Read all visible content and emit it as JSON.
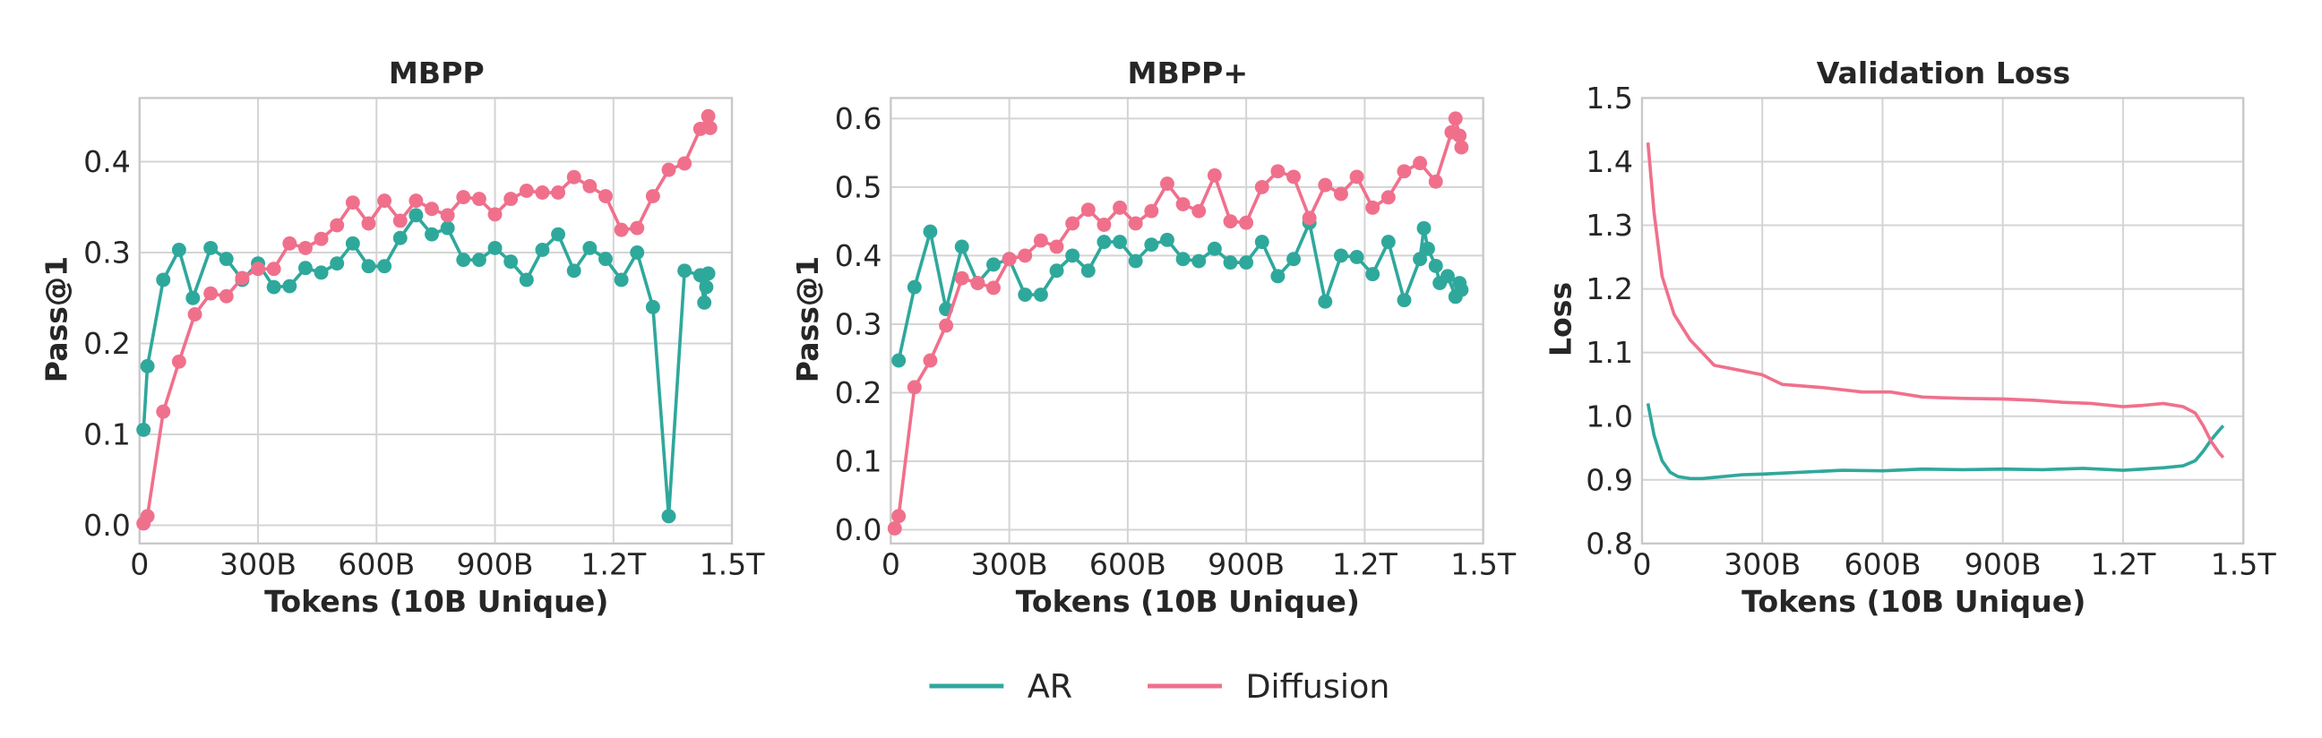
{
  "colors": {
    "AR": "#2fa89c",
    "Diffusion": "#f0708c"
  },
  "legend": {
    "placement": "bottom-center",
    "entries": [
      "AR",
      "Diffusion"
    ]
  },
  "chart_data": [
    {
      "type": "line",
      "title": "MBPP",
      "xlabel": "Tokens (10B Unique)",
      "ylabel": "Pass@1",
      "xlim": [
        0,
        1.5
      ],
      "ylim": [
        -0.02,
        0.47
      ],
      "x_unit": "trillion tokens",
      "xticks": [
        0,
        0.3,
        0.6,
        0.9,
        1.2,
        1.5
      ],
      "xtick_labels": [
        "0",
        "300B",
        "600B",
        "900B",
        "1.2T",
        "1.5T"
      ],
      "yticks": [
        0,
        0.1,
        0.2,
        0.3,
        0.4
      ],
      "ytick_labels": [
        "0.0",
        "0.1",
        "0.2",
        "0.3",
        "0.4"
      ],
      "grid": true,
      "markers": true,
      "series": [
        {
          "name": "AR",
          "points": [
            [
              0.01,
              0.105
            ],
            [
              0.02,
              0.175
            ],
            [
              0.06,
              0.27
            ],
            [
              0.1,
              0.303
            ],
            [
              0.135,
              0.25
            ],
            [
              0.18,
              0.305
            ],
            [
              0.22,
              0.293
            ],
            [
              0.26,
              0.27
            ],
            [
              0.3,
              0.288
            ],
            [
              0.34,
              0.262
            ],
            [
              0.38,
              0.263
            ],
            [
              0.42,
              0.283
            ],
            [
              0.46,
              0.278
            ],
            [
              0.5,
              0.288
            ],
            [
              0.54,
              0.31
            ],
            [
              0.58,
              0.285
            ],
            [
              0.62,
              0.285
            ],
            [
              0.66,
              0.316
            ],
            [
              0.7,
              0.341
            ],
            [
              0.74,
              0.32
            ],
            [
              0.78,
              0.327
            ],
            [
              0.82,
              0.292
            ],
            [
              0.86,
              0.292
            ],
            [
              0.9,
              0.305
            ],
            [
              0.94,
              0.29
            ],
            [
              0.98,
              0.27
            ],
            [
              1.02,
              0.303
            ],
            [
              1.06,
              0.32
            ],
            [
              1.1,
              0.28
            ],
            [
              1.14,
              0.305
            ],
            [
              1.18,
              0.293
            ],
            [
              1.22,
              0.27
            ],
            [
              1.26,
              0.3
            ],
            [
              1.3,
              0.24
            ],
            [
              1.34,
              0.01
            ],
            [
              1.38,
              0.28
            ],
            [
              1.42,
              0.275
            ],
            [
              1.43,
              0.245
            ],
            [
              1.435,
              0.262
            ],
            [
              1.44,
              0.277
            ]
          ]
        },
        {
          "name": "Diffusion",
          "points": [
            [
              0.01,
              0.002
            ],
            [
              0.02,
              0.01
            ],
            [
              0.06,
              0.125
            ],
            [
              0.1,
              0.18
            ],
            [
              0.14,
              0.232
            ],
            [
              0.18,
              0.255
            ],
            [
              0.22,
              0.252
            ],
            [
              0.26,
              0.272
            ],
            [
              0.3,
              0.282
            ],
            [
              0.34,
              0.282
            ],
            [
              0.38,
              0.31
            ],
            [
              0.42,
              0.305
            ],
            [
              0.46,
              0.315
            ],
            [
              0.5,
              0.33
            ],
            [
              0.54,
              0.355
            ],
            [
              0.58,
              0.332
            ],
            [
              0.62,
              0.357
            ],
            [
              0.66,
              0.335
            ],
            [
              0.7,
              0.357
            ],
            [
              0.74,
              0.348
            ],
            [
              0.78,
              0.341
            ],
            [
              0.82,
              0.361
            ],
            [
              0.86,
              0.359
            ],
            [
              0.9,
              0.342
            ],
            [
              0.94,
              0.359
            ],
            [
              0.98,
              0.368
            ],
            [
              1.02,
              0.366
            ],
            [
              1.06,
              0.366
            ],
            [
              1.1,
              0.383
            ],
            [
              1.14,
              0.373
            ],
            [
              1.18,
              0.362
            ],
            [
              1.22,
              0.325
            ],
            [
              1.26,
              0.327
            ],
            [
              1.3,
              0.362
            ],
            [
              1.34,
              0.391
            ],
            [
              1.38,
              0.398
            ],
            [
              1.42,
              0.436
            ],
            [
              1.44,
              0.45
            ],
            [
              1.445,
              0.437
            ]
          ]
        }
      ]
    },
    {
      "type": "line",
      "title": "MBPP+",
      "xlabel": "Tokens (10B Unique)",
      "ylabel": "Pass@1",
      "xlim": [
        0,
        1.5
      ],
      "ylim": [
        -0.02,
        0.63
      ],
      "x_unit": "trillion tokens",
      "xticks": [
        0,
        0.3,
        0.6,
        0.9,
        1.2,
        1.5
      ],
      "xtick_labels": [
        "0",
        "300B",
        "600B",
        "900B",
        "1.2T",
        "1.5T"
      ],
      "yticks": [
        0,
        0.1,
        0.2,
        0.3,
        0.4,
        0.5,
        0.6
      ],
      "ytick_labels": [
        "0.0",
        "0.1",
        "0.2",
        "0.3",
        "0.4",
        "0.5",
        "0.6"
      ],
      "grid": true,
      "markers": true,
      "series": [
        {
          "name": "AR",
          "points": [
            [
              0.02,
              0.247
            ],
            [
              0.06,
              0.354
            ],
            [
              0.1,
              0.435
            ],
            [
              0.14,
              0.322
            ],
            [
              0.18,
              0.413
            ],
            [
              0.22,
              0.36
            ],
            [
              0.26,
              0.387
            ],
            [
              0.3,
              0.395
            ],
            [
              0.34,
              0.343
            ],
            [
              0.38,
              0.343
            ],
            [
              0.42,
              0.378
            ],
            [
              0.46,
              0.4
            ],
            [
              0.5,
              0.378
            ],
            [
              0.54,
              0.42
            ],
            [
              0.58,
              0.42
            ],
            [
              0.62,
              0.392
            ],
            [
              0.66,
              0.416
            ],
            [
              0.7,
              0.423
            ],
            [
              0.74,
              0.395
            ],
            [
              0.78,
              0.392
            ],
            [
              0.82,
              0.41
            ],
            [
              0.86,
              0.39
            ],
            [
              0.9,
              0.39
            ],
            [
              0.94,
              0.42
            ],
            [
              0.98,
              0.37
            ],
            [
              1.02,
              0.395
            ],
            [
              1.06,
              0.448
            ],
            [
              1.1,
              0.333
            ],
            [
              1.14,
              0.4
            ],
            [
              1.18,
              0.398
            ],
            [
              1.22,
              0.373
            ],
            [
              1.26,
              0.42
            ],
            [
              1.3,
              0.335
            ],
            [
              1.34,
              0.395
            ],
            [
              1.35,
              0.44
            ],
            [
              1.36,
              0.41
            ],
            [
              1.38,
              0.385
            ],
            [
              1.39,
              0.36
            ],
            [
              1.41,
              0.37
            ],
            [
              1.43,
              0.34
            ],
            [
              1.44,
              0.36
            ],
            [
              1.445,
              0.35
            ]
          ]
        },
        {
          "name": "Diffusion",
          "points": [
            [
              0.01,
              0.002
            ],
            [
              0.02,
              0.02
            ],
            [
              0.06,
              0.208
            ],
            [
              0.1,
              0.247
            ],
            [
              0.14,
              0.298
            ],
            [
              0.18,
              0.367
            ],
            [
              0.22,
              0.36
            ],
            [
              0.26,
              0.353
            ],
            [
              0.3,
              0.395
            ],
            [
              0.34,
              0.4
            ],
            [
              0.38,
              0.422
            ],
            [
              0.42,
              0.413
            ],
            [
              0.46,
              0.447
            ],
            [
              0.5,
              0.467
            ],
            [
              0.54,
              0.445
            ],
            [
              0.58,
              0.47
            ],
            [
              0.62,
              0.447
            ],
            [
              0.66,
              0.465
            ],
            [
              0.7,
              0.505
            ],
            [
              0.74,
              0.475
            ],
            [
              0.78,
              0.465
            ],
            [
              0.82,
              0.517
            ],
            [
              0.86,
              0.45
            ],
            [
              0.9,
              0.448
            ],
            [
              0.94,
              0.5
            ],
            [
              0.98,
              0.523
            ],
            [
              1.02,
              0.515
            ],
            [
              1.06,
              0.455
            ],
            [
              1.1,
              0.503
            ],
            [
              1.14,
              0.49
            ],
            [
              1.18,
              0.515
            ],
            [
              1.22,
              0.47
            ],
            [
              1.26,
              0.485
            ],
            [
              1.3,
              0.523
            ],
            [
              1.34,
              0.535
            ],
            [
              1.38,
              0.508
            ],
            [
              1.42,
              0.58
            ],
            [
              1.43,
              0.6
            ],
            [
              1.44,
              0.575
            ],
            [
              1.445,
              0.558
            ]
          ]
        }
      ]
    },
    {
      "type": "line",
      "title": "Validation Loss",
      "xlabel": "Tokens (10B Unique)",
      "ylabel": "Loss",
      "xlim": [
        0,
        1.5
      ],
      "ylim": [
        0.8,
        1.5
      ],
      "x_unit": "trillion tokens",
      "xticks": [
        0,
        0.3,
        0.6,
        0.9,
        1.2,
        1.5
      ],
      "xtick_labels": [
        "0",
        "300B",
        "600B",
        "900B",
        "1.2T",
        "1.5T"
      ],
      "yticks": [
        0.8,
        0.9,
        1.0,
        1.1,
        1.2,
        1.3,
        1.4,
        1.5
      ],
      "ytick_labels": [
        "0.8",
        "0.9",
        "1.0",
        "1.1",
        "1.2",
        "1.3",
        "1.4",
        "1.5"
      ],
      "grid": true,
      "markers": false,
      "series": [
        {
          "name": "AR",
          "points": [
            [
              0.015,
              1.02
            ],
            [
              0.03,
              0.97
            ],
            [
              0.05,
              0.93
            ],
            [
              0.07,
              0.912
            ],
            [
              0.09,
              0.905
            ],
            [
              0.12,
              0.902
            ],
            [
              0.15,
              0.902
            ],
            [
              0.2,
              0.905
            ],
            [
              0.25,
              0.908
            ],
            [
              0.3,
              0.909
            ],
            [
              0.4,
              0.912
            ],
            [
              0.5,
              0.915
            ],
            [
              0.6,
              0.914
            ],
            [
              0.7,
              0.917
            ],
            [
              0.8,
              0.916
            ],
            [
              0.9,
              0.917
            ],
            [
              1.0,
              0.916
            ],
            [
              1.1,
              0.918
            ],
            [
              1.2,
              0.915
            ],
            [
              1.25,
              0.917
            ],
            [
              1.3,
              0.919
            ],
            [
              1.35,
              0.922
            ],
            [
              1.38,
              0.93
            ],
            [
              1.4,
              0.945
            ],
            [
              1.42,
              0.963
            ],
            [
              1.44,
              0.978
            ],
            [
              1.45,
              0.985
            ]
          ]
        },
        {
          "name": "Diffusion",
          "points": [
            [
              0.015,
              1.43
            ],
            [
              0.03,
              1.32
            ],
            [
              0.05,
              1.22
            ],
            [
              0.08,
              1.16
            ],
            [
              0.12,
              1.12
            ],
            [
              0.15,
              1.1
            ],
            [
              0.18,
              1.08
            ],
            [
              0.22,
              1.075
            ],
            [
              0.3,
              1.065
            ],
            [
              0.35,
              1.05
            ],
            [
              0.45,
              1.045
            ],
            [
              0.55,
              1.038
            ],
            [
              0.62,
              1.038
            ],
            [
              0.7,
              1.03
            ],
            [
              0.8,
              1.028
            ],
            [
              0.9,
              1.027
            ],
            [
              0.98,
              1.025
            ],
            [
              1.05,
              1.022
            ],
            [
              1.12,
              1.02
            ],
            [
              1.2,
              1.015
            ],
            [
              1.25,
              1.017
            ],
            [
              1.3,
              1.02
            ],
            [
              1.35,
              1.015
            ],
            [
              1.38,
              1.005
            ],
            [
              1.4,
              0.985
            ],
            [
              1.42,
              0.96
            ],
            [
              1.44,
              0.942
            ],
            [
              1.45,
              0.935
            ]
          ]
        }
      ]
    }
  ]
}
